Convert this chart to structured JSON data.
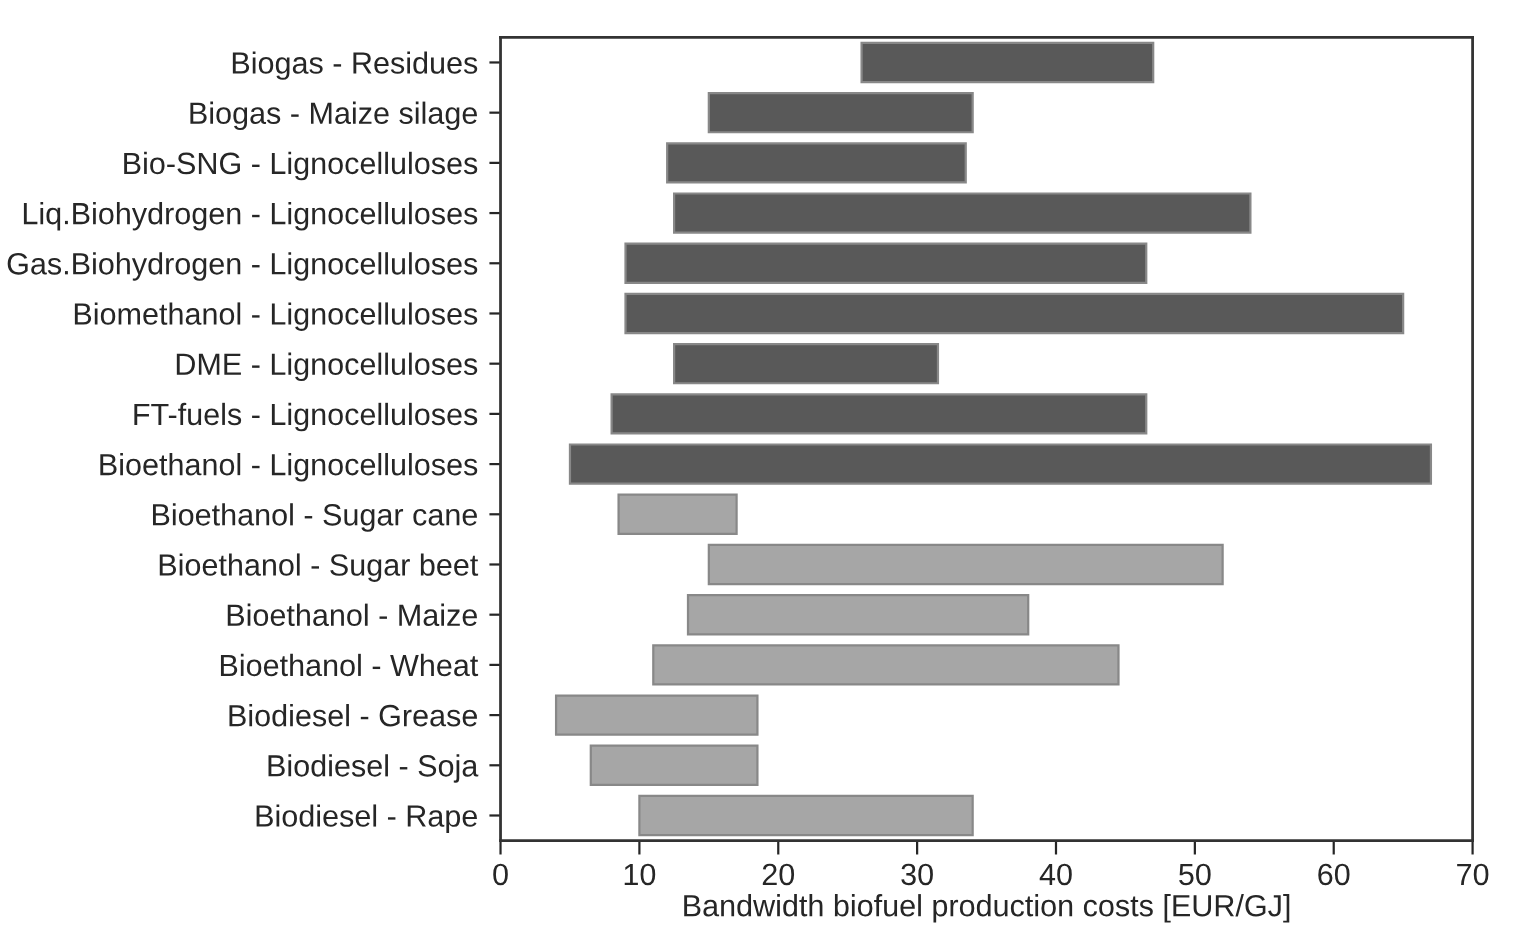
{
  "chart_data": {
    "type": "bar",
    "orientation": "horizontal",
    "xlabel": "Bandwidth biofuel production costs [EUR/GJ]",
    "categories": [
      "Biogas - Residues",
      "Biogas - Maize silage",
      "Bio-SNG - Lignocelluloses",
      "Liq.Biohydrogen - Lignocelluloses",
      "Gas.Biohydrogen - Lignocelluloses",
      "Biomethanol - Lignocelluloses",
      "DME - Lignocelluloses",
      "FT-fuels - Lignocelluloses",
      "Bioethanol - Lignocelluloses",
      "Bioethanol - Sugar cane",
      "Bioethanol - Sugar beet",
      "Bioethanol - Maize",
      "Bioethanol - Wheat",
      "Biodiesel - Grease",
      "Biodiesel - Soja",
      "Biodiesel - Rape"
    ],
    "base": [
      26,
      15,
      12,
      12.5,
      9,
      9,
      12.5,
      8,
      5,
      8.5,
      15,
      13.5,
      11,
      4,
      6.5,
      10
    ],
    "values": [
      21,
      19,
      21.5,
      41.5,
      37.5,
      56,
      19,
      38.5,
      62,
      8.5,
      37,
      24.5,
      33.5,
      14.5,
      12,
      24
    ],
    "colors": [
      "#595959",
      "#595959",
      "#595959",
      "#595959",
      "#595959",
      "#595959",
      "#595959",
      "#595959",
      "#595959",
      "#a6a6a6",
      "#a6a6a6",
      "#a6a6a6",
      "#a6a6a6",
      "#a6a6a6",
      "#a6a6a6",
      "#a6a6a6"
    ],
    "xlim": [
      0,
      70
    ],
    "xticks": [
      0,
      10,
      20,
      30,
      40,
      50,
      60,
      70
    ],
    "grid": false
  }
}
